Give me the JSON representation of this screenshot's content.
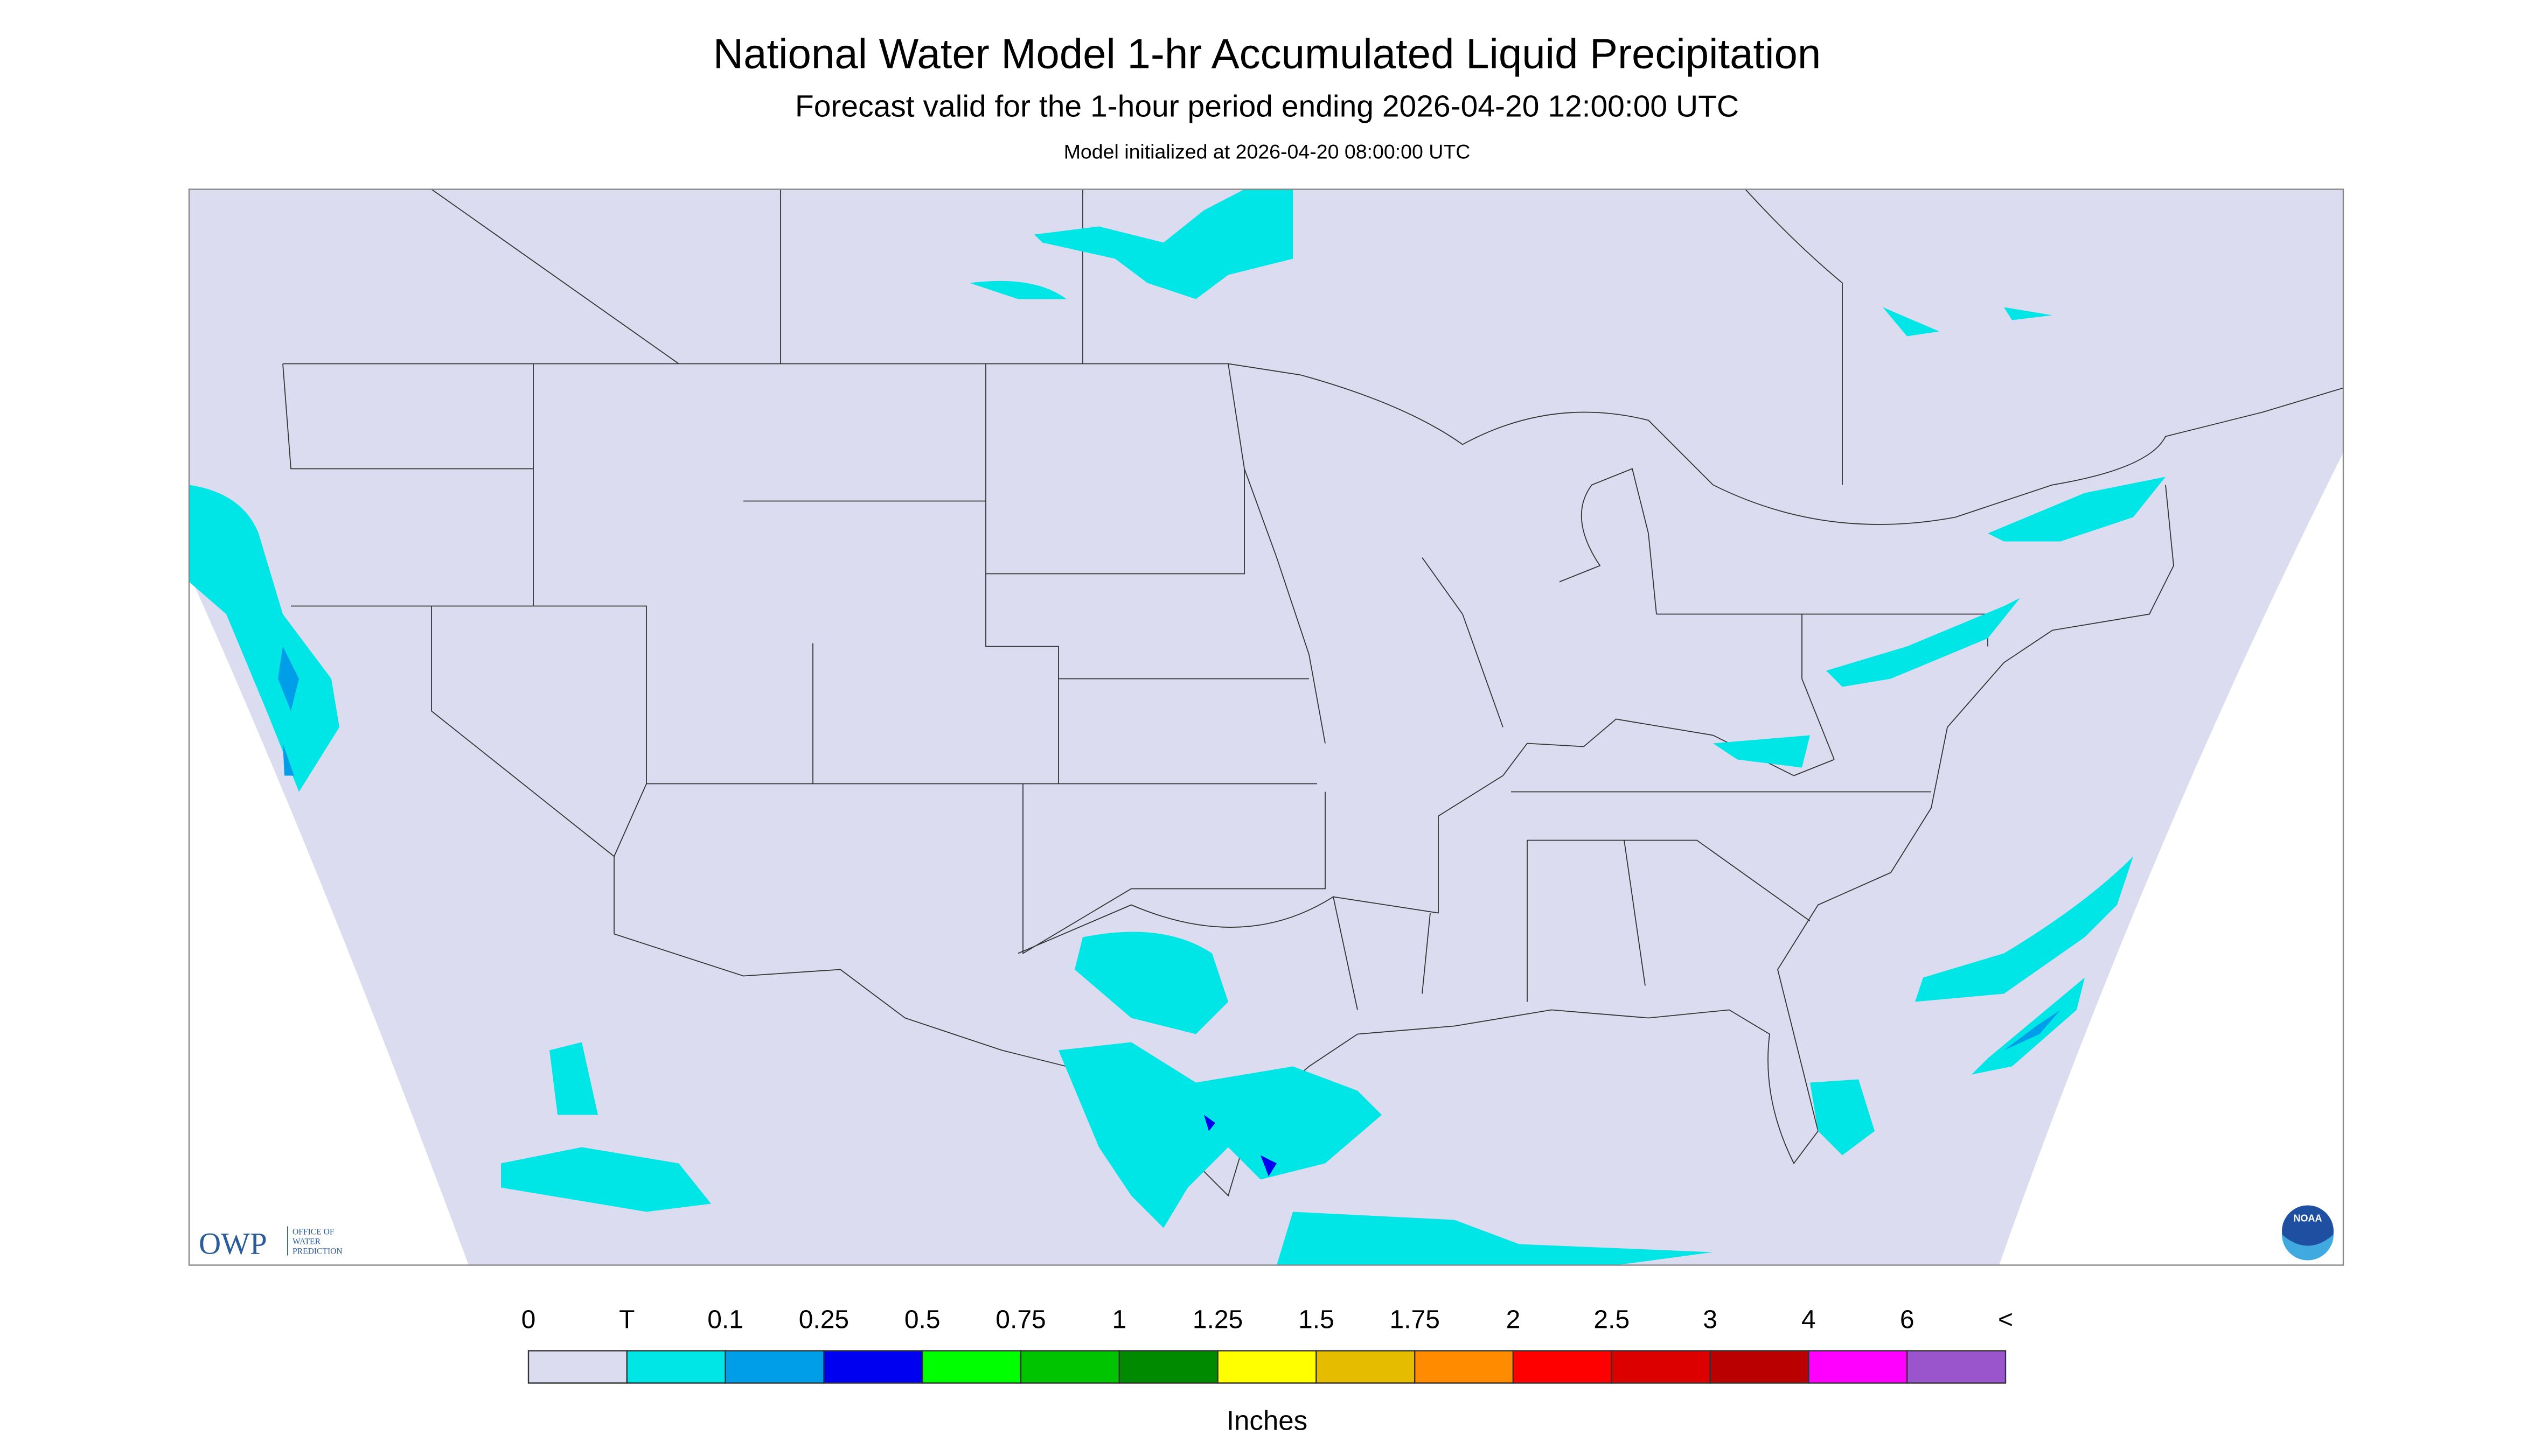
{
  "header": {
    "title": "National Water Model 1-hr Accumulated Liquid Precipitation",
    "subtitle": "Forecast valid for the 1-hour period ending 2026-04-20 12:00:00 UTC",
    "init": "Model initialized at 2026-04-20 08:00:00 UTC"
  },
  "legend": {
    "labels": [
      "0",
      "T",
      "0.1",
      "0.25",
      "0.5",
      "0.75",
      "1",
      "1.25",
      "1.5",
      "1.75",
      "2",
      "2.5",
      "3",
      "4",
      "6",
      "<"
    ],
    "colors": [
      "#dcdcf0",
      "#00e6e6",
      "#009ee8",
      "#0000f0",
      "#00ff00",
      "#00c400",
      "#008a00",
      "#ffff00",
      "#e6bc00",
      "#ff8c00",
      "#ff0000",
      "#dc0000",
      "#ba0000",
      "#ff00ff",
      "#9a55cc"
    ],
    "unit": "Inches"
  },
  "logo": {
    "name": "OWP",
    "lines": [
      "OFFICE OF",
      "WATER",
      "PREDICTION"
    ],
    "noaa": "NOAA"
  }
}
